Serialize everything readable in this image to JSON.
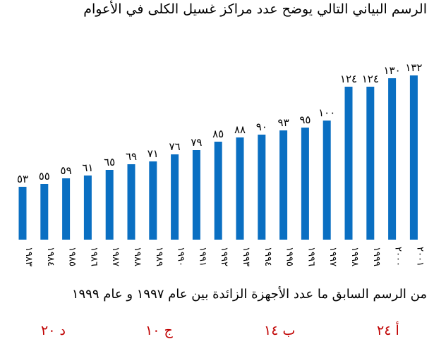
{
  "question": {
    "title": "الرسم البياني التالي يوضح عدد مراكز غسيل الكلى في  الأعوام",
    "text": "من الرسم السابق ما عدد الأجهزة الزائدة بين عام ١٩٩٧ و عام ١٩٩٩",
    "options": [
      {
        "letter": "أ",
        "value": "٢٤",
        "label": "أ ٢٤"
      },
      {
        "letter": "ب",
        "value": "١٤",
        "label": "ب ١٤"
      },
      {
        "letter": "ج",
        "value": "١٠",
        "label": "ج ١٠"
      },
      {
        "letter": "د",
        "value": "٢٠",
        "label": "د ٢٠"
      }
    ]
  },
  "colors": {
    "bar": "#0a6fc2",
    "options": "#c00000"
  },
  "chart_data": {
    "type": "bar",
    "title": "الرسم البياني التالي يوضح عدد مراكز غسيل الكلى في  الأعوام",
    "categories": [
      "١٩٨٣",
      "١٩٨٤",
      "١٩٨٥",
      "١٩٨٦",
      "١٩٨٧",
      "١٩٨٨",
      "١٩٨٩",
      "١٩٩٠",
      "١٩٩١",
      "١٩٩٢",
      "١٩٩٣",
      "١٩٩٤",
      "١٩٩٥",
      "١٩٩٦",
      "١٩٩٧",
      "١٩٩٨",
      "١٩٩٩",
      "٢٠٠٠",
      "٢٠٠١"
    ],
    "values": [
      53,
      55,
      59,
      61,
      65,
      69,
      71,
      76,
      79,
      85,
      88,
      90,
      93,
      95,
      100,
      124,
      124,
      130,
      132
    ],
    "value_labels": [
      "٥٣",
      "٥٥",
      "٥٩",
      "٦١",
      "٦٥",
      "٦٩",
      "٧١",
      "٧٦",
      "٧٩",
      "٨٥",
      "٨٨",
      "٩٠",
      "٩٣",
      "٩٥",
      "١٠٠",
      "١٢٤",
      "١٢٤",
      "١٣٠",
      "١٣٢"
    ],
    "x": [
      1983,
      1984,
      1985,
      1986,
      1987,
      1988,
      1989,
      1990,
      1991,
      1992,
      1993,
      1994,
      1995,
      1996,
      1997,
      1998,
      1999,
      2000,
      2001
    ],
    "ylim": [
      0,
      140
    ],
    "grid": false,
    "legend": "none"
  }
}
